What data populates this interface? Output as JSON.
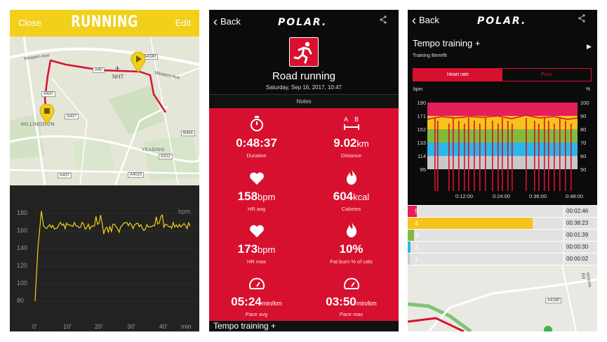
{
  "screen1": {
    "close_label": "Close",
    "title": "RUNNING",
    "edit_label": "Edit",
    "map": {
      "labels": [
        "Western Ave",
        "NHT",
        "A40",
        "A437",
        "HILLINGDON",
        "YEADING",
        "A312",
        "A4020",
        "A437",
        "B455",
        "Western Ave",
        "A4180",
        "A437"
      ],
      "road_color": "#d8102f",
      "marker_color": "#f2cf1a"
    },
    "chart": {
      "unit": "bpm",
      "y_ticks": [
        "180",
        "160",
        "140",
        "120",
        "100",
        "80"
      ],
      "x_ticks": [
        "0'",
        "10'",
        "20'",
        "30'",
        "40'",
        "min"
      ],
      "line_color": "#f2cf1a"
    }
  },
  "screen2": {
    "back_label": "Back",
    "logo": "POLAR.",
    "sport": "Road running",
    "date": "Saturday, Sep 16, 2017, 10:47",
    "notes_label": "Notes",
    "stats": [
      {
        "icon": "stopwatch-icon",
        "value": "0:48:37",
        "unit": "",
        "label": "Duration"
      },
      {
        "icon": "distance-icon",
        "value": "9.02",
        "unit": "km",
        "label": "Distance"
      },
      {
        "icon": "heart-icon",
        "value": "158",
        "unit": "bpm",
        "label": "HR avg"
      },
      {
        "icon": "flame-icon",
        "value": "604",
        "unit": "kcal",
        "label": "Calories"
      },
      {
        "icon": "heart-icon",
        "value": "173",
        "unit": "bpm",
        "label": "HR max"
      },
      {
        "icon": "flame-icon",
        "value": "10%",
        "unit": "",
        "label": "Fat burn % of cals"
      },
      {
        "icon": "speedometer-icon",
        "value": "05:24",
        "unit": "min/km",
        "label": "Pace avg"
      },
      {
        "icon": "speedometer-icon",
        "value": "03:50",
        "unit": "min/km",
        "label": "Pace max"
      }
    ],
    "bottom_title": "Tempo training +"
  },
  "screen3": {
    "back_label": "Back",
    "logo": "POLAR.",
    "title": "Tempo training +",
    "subtitle": "Training Benefit",
    "tabs": [
      "Heart rate",
      "Pace"
    ],
    "chart": {
      "left_unit": "bpm",
      "right_unit": "%",
      "left_ticks": [
        "190",
        "171",
        "152",
        "133",
        "114",
        "95"
      ],
      "right_ticks": [
        "100",
        "90",
        "80",
        "70",
        "60",
        "50"
      ],
      "x_ticks": [
        "0:12:00",
        "0:24:00",
        "0:36:00",
        "0:48:00"
      ],
      "zone_colors": [
        "#e61e5a",
        "#f6c21c",
        "#84b93a",
        "#29b6ea",
        "#c8c8c8"
      ]
    },
    "zones": [
      {
        "zone": "5",
        "time": "00:02:46",
        "fraction": 0.06,
        "color": "#e61e5a"
      },
      {
        "zone": "4",
        "time": "00:38:23",
        "fraction": 0.8,
        "color": "#f6c21c"
      },
      {
        "zone": "3",
        "time": "00:01:39",
        "fraction": 0.04,
        "color": "#84b93a"
      },
      {
        "zone": "2",
        "time": "00:00:30",
        "fraction": 0.02,
        "color": "#29b6ea"
      },
      {
        "zone": "1",
        "time": "00:00:02",
        "fraction": 0.0,
        "color": "#c8c8c8"
      }
    ],
    "map_labels": [
      "A4180",
      "Victoria Rd"
    ]
  }
}
